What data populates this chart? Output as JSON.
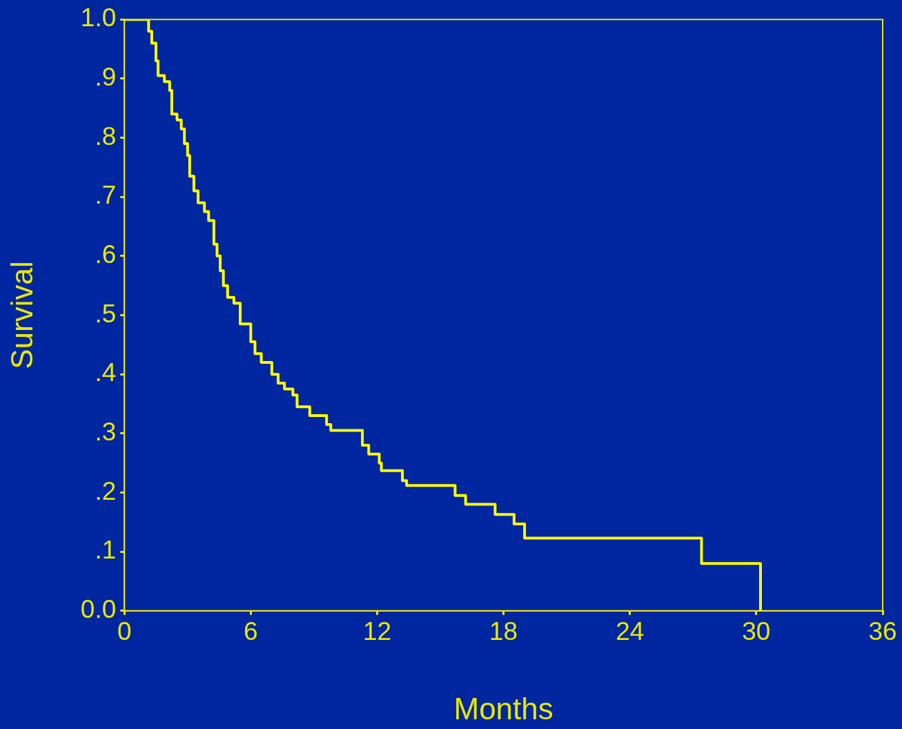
{
  "chart_data": {
    "type": "step",
    "xlabel": "Months",
    "ylabel": "Survival",
    "xlim": [
      0,
      36
    ],
    "xticks": [
      0,
      6,
      12,
      18,
      24,
      30,
      36
    ],
    "ylim": [
      0,
      1
    ],
    "yticks": [
      {
        "value": 0,
        "label": "0.0"
      },
      {
        "value": 0.1,
        "label": ".1"
      },
      {
        "value": 0.2,
        "label": ".2"
      },
      {
        "value": 0.3,
        "label": ".3"
      },
      {
        "value": 0.4,
        "label": ".4"
      },
      {
        "value": 0.5,
        "label": ".5"
      },
      {
        "value": 0.6,
        "label": ".6"
      },
      {
        "value": 0.7,
        "label": ".7"
      },
      {
        "value": 0.8,
        "label": ".8"
      },
      {
        "value": 0.9,
        "label": ".9"
      },
      {
        "value": 1,
        "label": "1.0"
      }
    ],
    "grid": false,
    "legend": false,
    "marker": "none",
    "line_style": "solid",
    "series": [
      {
        "color": "#ffff00",
        "x": [
          0,
          0.95,
          1.15,
          1.3,
          1.5,
          1.6,
          1.9,
          2.15,
          2.25,
          2.5,
          2.7,
          2.85,
          3.0,
          3.1,
          3.3,
          3.5,
          3.8,
          4.0,
          4.25,
          4.4,
          4.55,
          4.7,
          4.9,
          5.2,
          5.5,
          6.0,
          6.2,
          6.5,
          7.0,
          7.3,
          7.6,
          8.0,
          8.2,
          8.8,
          9.6,
          9.8,
          11.3,
          11.6,
          12.1,
          12.2,
          13.2,
          13.4,
          15.7,
          16.2,
          17.6,
          18.5,
          19.0,
          27.4,
          30.2
        ],
        "values": [
          1.0,
          1.0,
          0.98,
          0.96,
          0.93,
          0.905,
          0.895,
          0.88,
          0.84,
          0.83,
          0.815,
          0.79,
          0.77,
          0.735,
          0.71,
          0.69,
          0.675,
          0.66,
          0.62,
          0.6,
          0.575,
          0.55,
          0.53,
          0.52,
          0.485,
          0.455,
          0.435,
          0.42,
          0.4,
          0.385,
          0.375,
          0.365,
          0.345,
          0.33,
          0.315,
          0.305,
          0.28,
          0.265,
          0.25,
          0.237,
          0.22,
          0.212,
          0.195,
          0.18,
          0.163,
          0.147,
          0.123,
          0.08,
          0
        ]
      }
    ]
  }
}
